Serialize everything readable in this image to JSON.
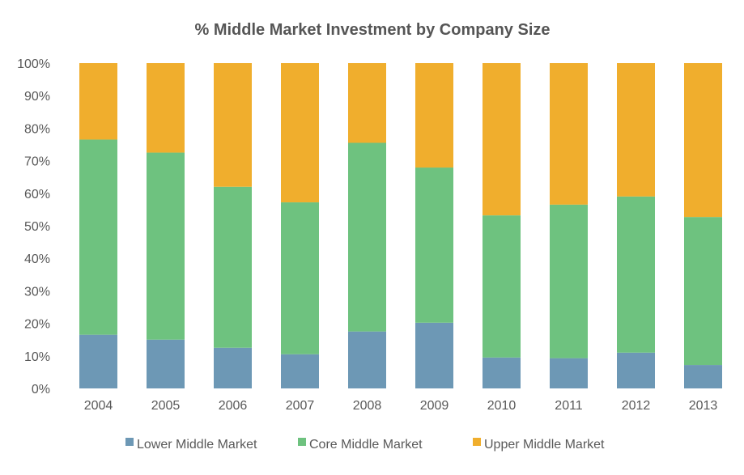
{
  "chart_data": {
    "type": "bar",
    "stacked": true,
    "title": "% Middle Market Investment by Company Size",
    "xlabel": "",
    "ylabel": "",
    "ylim": [
      0,
      100
    ],
    "y_ticks": [
      "0%",
      "10%",
      "20%",
      "30%",
      "40%",
      "50%",
      "60%",
      "70%",
      "80%",
      "90%",
      "100%"
    ],
    "categories": [
      "2004",
      "2005",
      "2006",
      "2007",
      "2008",
      "2009",
      "2010",
      "2011",
      "2012",
      "2013"
    ],
    "series": [
      {
        "name": "Lower Middle Market",
        "color": "#6d98b5",
        "values": [
          16.5,
          15,
          12.5,
          10.5,
          17.5,
          20.2,
          9.5,
          9.3,
          11,
          7.2
        ]
      },
      {
        "name": "Core Middle Market",
        "color": "#6ec27f",
        "values": [
          60,
          57.5,
          49.5,
          46.7,
          58,
          47.7,
          43.7,
          47.2,
          48,
          45.5
        ]
      },
      {
        "name": "Upper Middle Market",
        "color": "#f0ae2d",
        "values": [
          23.5,
          27.5,
          38,
          42.8,
          24.5,
          32.1,
          46.8,
          43.5,
          41,
          47.3
        ]
      }
    ],
    "grid": false,
    "legend_position": "bottom"
  }
}
